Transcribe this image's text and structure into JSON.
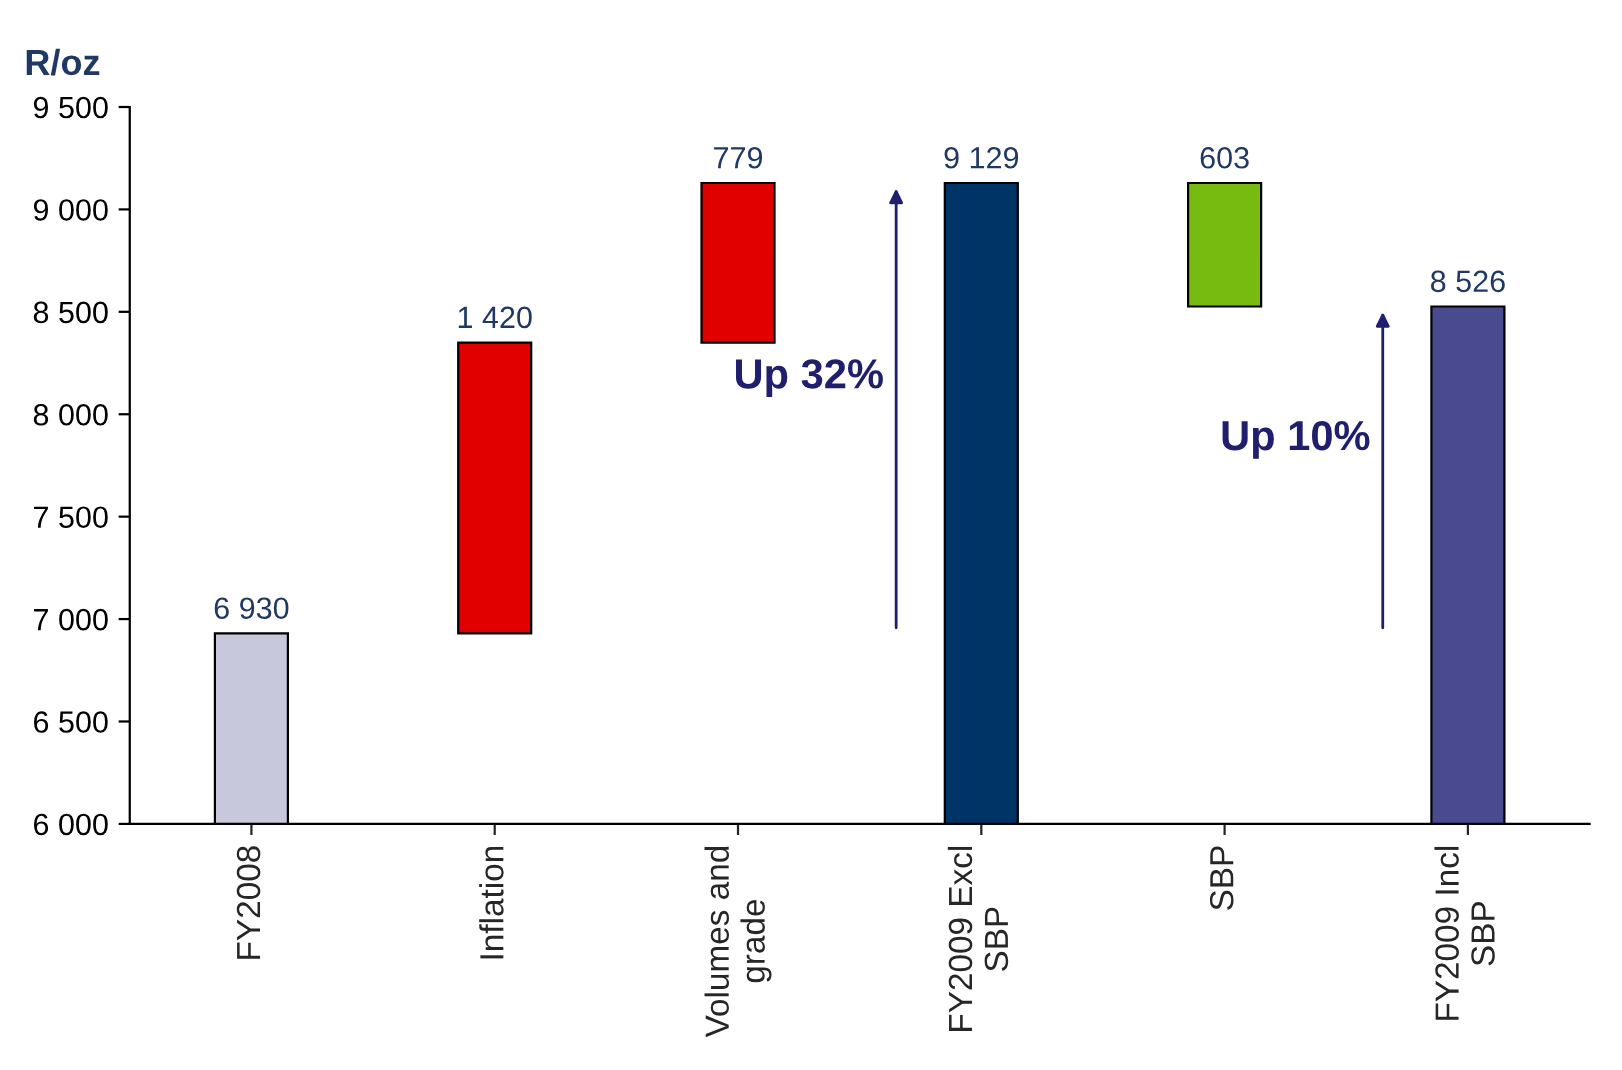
{
  "chart_data": {
    "type": "bar",
    "ylabel": "R/oz",
    "categories": [
      "FY2008",
      "Inflation",
      "Volumes and\ngrade",
      "FY2009 Excl\nSBP",
      "SBP",
      "FY2009 Incl\nSBP"
    ],
    "values": [
      6930,
      1420,
      779,
      9129,
      603,
      8526
    ],
    "base": [
      null,
      6930,
      8350,
      null,
      8526,
      null
    ],
    "value_labels": [
      "6 930",
      "1 420",
      "779",
      "9 129",
      "603",
      "8 526"
    ],
    "colors": [
      "#c8c8dc",
      "#e00000",
      "#e00000",
      "#003366",
      "#77bb11",
      "#4a4a90"
    ],
    "ylim": [
      6000,
      9500
    ],
    "yticks": [
      {
        "value": 6000,
        "label": "6 000"
      },
      {
        "value": 6500,
        "label": "6 500"
      },
      {
        "value": 7000,
        "label": "7 000"
      },
      {
        "value": 7500,
        "label": "7 500"
      },
      {
        "value": 8000,
        "label": "8 000"
      },
      {
        "value": 8500,
        "label": "8 500"
      },
      {
        "value": 9000,
        "label": "9 000"
      },
      {
        "value": 9500,
        "label": "9 500"
      }
    ],
    "annotations": [
      "Up 32%",
      "Up 10%"
    ],
    "grid": false,
    "legend": false
  }
}
